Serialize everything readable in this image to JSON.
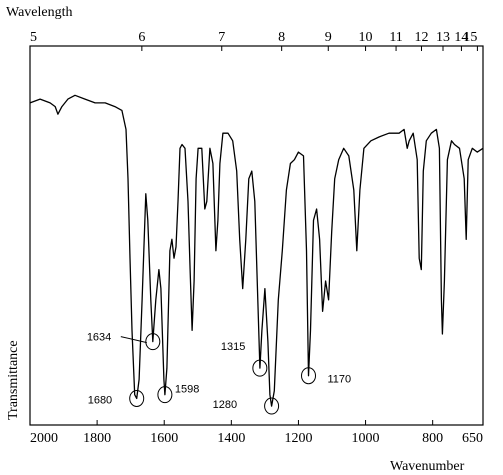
{
  "chart_data": {
    "type": "line",
    "top_axis_label": "Wavelength",
    "x_label": "Wavenumber",
    "y_label": "Transmittance",
    "xlim": [
      2000,
      650
    ],
    "xticks": [
      2000,
      1800,
      1600,
      1400,
      1200,
      1000,
      800,
      650
    ],
    "top_ticks": [
      5,
      6,
      7,
      8,
      9,
      10,
      11,
      12,
      13,
      14,
      15
    ],
    "ylim": [
      0,
      100
    ],
    "color": "#000000",
    "x": [
      2000,
      1970,
      1940,
      1925,
      1917,
      1905,
      1887,
      1866,
      1836,
      1806,
      1776,
      1747,
      1726,
      1714,
      1708,
      1702,
      1696,
      1688,
      1682,
      1675,
      1666,
      1655,
      1649,
      1640,
      1634,
      1625,
      1616,
      1610,
      1601,
      1598,
      1592,
      1583,
      1577,
      1571,
      1565,
      1559,
      1553,
      1547,
      1538,
      1529,
      1523,
      1517,
      1511,
      1505,
      1499,
      1488,
      1479,
      1473,
      1464,
      1455,
      1446,
      1440,
      1434,
      1425,
      1410,
      1396,
      1384,
      1375,
      1366,
      1357,
      1348,
      1339,
      1330,
      1321,
      1315,
      1309,
      1300,
      1291,
      1285,
      1280,
      1272,
      1260,
      1248,
      1236,
      1224,
      1212,
      1200,
      1185,
      1176,
      1170,
      1164,
      1155,
      1146,
      1137,
      1128,
      1119,
      1110,
      1101,
      1092,
      1080,
      1065,
      1050,
      1035,
      1026,
      1017,
      1005,
      984,
      960,
      930,
      900,
      885,
      876,
      870,
      858,
      846,
      840,
      834,
      828,
      819,
      804,
      789,
      780,
      774,
      771,
      765,
      756,
      744,
      735,
      720,
      706,
      700,
      694,
      682,
      667,
      650
    ],
    "values": [
      85,
      86,
      85,
      84,
      82,
      84,
      86,
      87,
      86,
      85,
      85,
      84,
      83,
      78,
      65,
      44,
      25,
      8,
      7,
      12,
      33,
      61,
      54,
      33,
      22,
      33,
      41,
      36,
      12,
      8,
      15,
      46,
      49,
      44,
      47,
      59,
      73,
      74,
      73,
      59,
      41,
      25,
      38,
      65,
      73,
      73,
      57,
      59,
      73,
      69,
      46,
      54,
      69,
      77,
      77,
      75,
      67,
      49,
      36,
      49,
      65,
      67,
      59,
      33,
      15,
      25,
      36,
      22,
      8,
      5,
      9,
      33,
      46,
      62,
      69,
      70,
      72,
      71,
      46,
      13,
      25,
      54,
      57,
      49,
      30,
      38,
      33,
      51,
      65,
      70,
      73,
      71,
      62,
      46,
      62,
      73,
      75,
      76,
      77,
      77,
      78,
      73,
      75,
      77,
      70,
      44,
      41,
      67,
      75,
      77,
      78,
      73,
      33,
      24,
      38,
      70,
      75,
      74,
      73,
      65,
      49,
      70,
      73,
      72,
      73
    ],
    "annotations": [
      {
        "label": "1634",
        "x": 1634,
        "y": 22
      },
      {
        "label": "1680",
        "x": 1682,
        "y": 7
      },
      {
        "label": "1598",
        "x": 1598,
        "y": 8
      },
      {
        "label": "1315",
        "x": 1315,
        "y": 15
      },
      {
        "label": "1280",
        "x": 1280,
        "y": 5
      },
      {
        "label": "1170",
        "x": 1170,
        "y": 13
      }
    ]
  }
}
